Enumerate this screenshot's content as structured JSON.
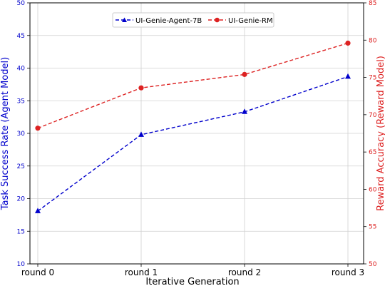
{
  "colors": {
    "left_axis": "#0000cc",
    "right_axis": "#dd2222",
    "grid": "#d0d0d0",
    "frame": "#000000"
  },
  "chart_data": {
    "type": "line",
    "xlabel": "Iterative Generation",
    "categories": [
      "round 0",
      "round 1",
      "round 2",
      "round 3"
    ],
    "grid": true,
    "legend_position": "top-center",
    "left_axis": {
      "label": "Task Success Rate (Agent Model)",
      "ylim": [
        10,
        50
      ],
      "ticks": [
        "10",
        "15",
        "20",
        "25",
        "30",
        "35",
        "40",
        "45",
        "50"
      ]
    },
    "right_axis": {
      "label": "Reward Accuracy (Reward Model)",
      "ylim": [
        50,
        85
      ],
      "ticks": [
        "50",
        "55",
        "60",
        "65",
        "70",
        "75",
        "80",
        "85"
      ]
    },
    "series": [
      {
        "name": "UI-Genie-Agent-7B",
        "axis": "left",
        "color": "#0000cc",
        "marker": "triangle",
        "values": [
          18.1,
          29.8,
          33.3,
          38.7
        ]
      },
      {
        "name": "UI-Genie-RM",
        "axis": "right",
        "color": "#dd2222",
        "marker": "circle",
        "values": [
          68.2,
          73.6,
          75.4,
          79.6
        ]
      }
    ]
  }
}
